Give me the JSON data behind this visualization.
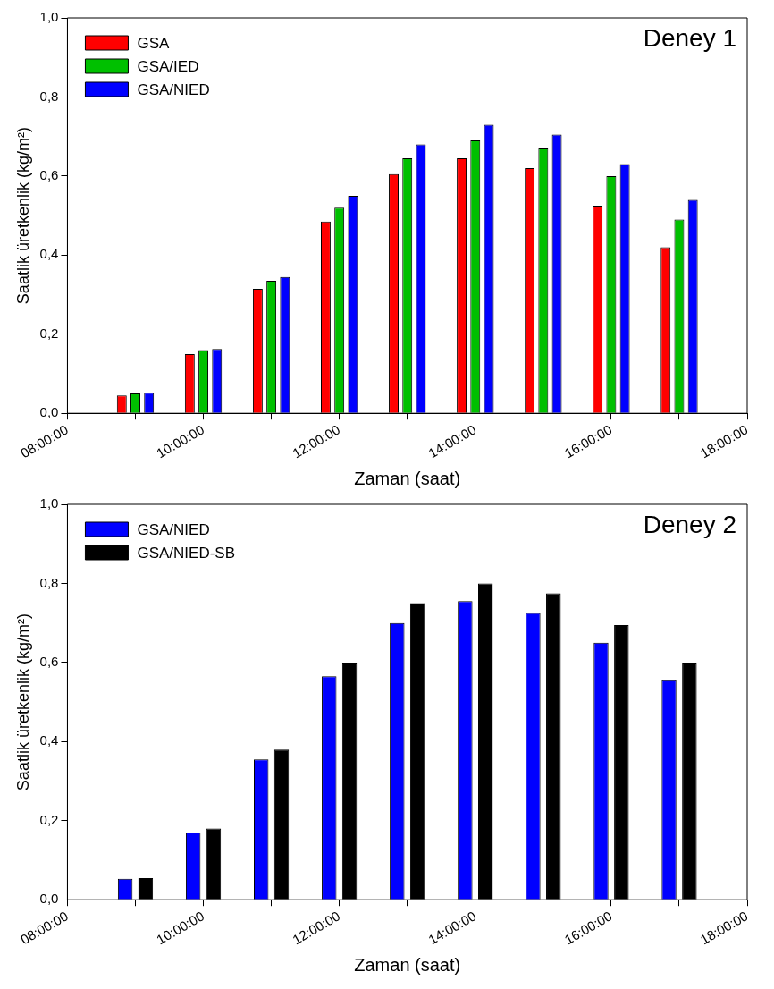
{
  "chart_data": [
    {
      "type": "bar",
      "annotations": [
        "Deney 1"
      ],
      "xlabel": "Zaman (saat)",
      "ylabel": "Saatlik üretkenlik (kg/m²)",
      "x": [
        9,
        10,
        11,
        12,
        13,
        14,
        15,
        16,
        17
      ],
      "series": [
        {
          "name": "GSA",
          "color": "#ff0000",
          "values": [
            0.045,
            0.15,
            0.315,
            0.485,
            0.605,
            0.645,
            0.62,
            0.525,
            0.42
          ]
        },
        {
          "name": "GSA/IED",
          "color": "#00c000",
          "values": [
            0.05,
            0.16,
            0.335,
            0.52,
            0.645,
            0.69,
            0.67,
            0.6,
            0.49
          ]
        },
        {
          "name": "GSA/NIED",
          "color": "#0000ff",
          "values": [
            0.052,
            0.163,
            0.345,
            0.55,
            0.68,
            0.73,
            0.705,
            0.63,
            0.54
          ]
        }
      ],
      "xlim": [
        8,
        18
      ],
      "xticks": [
        {
          "value": 8,
          "label": "08:00:00"
        },
        {
          "value": 9,
          "label": null
        },
        {
          "value": 10,
          "label": "10:00:00"
        },
        {
          "value": 11,
          "label": null
        },
        {
          "value": 12,
          "label": "12:00:00"
        },
        {
          "value": 13,
          "label": null
        },
        {
          "value": 14,
          "label": "14:00:00"
        },
        {
          "value": 15,
          "label": null
        },
        {
          "value": 16,
          "label": "16:00:00"
        },
        {
          "value": 17,
          "label": null
        },
        {
          "value": 18,
          "label": "18:00:00"
        }
      ],
      "ylim": [
        0,
        1
      ],
      "yticks": [
        {
          "value": 0,
          "label": "0,0"
        },
        {
          "value": 0.2,
          "label": "0,2"
        },
        {
          "value": 0.4,
          "label": "0,4"
        },
        {
          "value": 0.6,
          "label": "0,6"
        },
        {
          "value": 0.8,
          "label": "0,8"
        },
        {
          "value": 1,
          "label": "1,0"
        }
      ],
      "legend": "top left"
    },
    {
      "type": "bar",
      "annotations": [
        "Deney 2"
      ],
      "xlabel": "Zaman (saat)",
      "ylabel": "Saatlik üretkenlik (kg/m²)",
      "x": [
        9,
        10,
        11,
        12,
        13,
        14,
        15,
        16,
        17
      ],
      "series": [
        {
          "name": "GSA/NIED",
          "color": "#0000ff",
          "values": [
            0.053,
            0.17,
            0.355,
            0.565,
            0.7,
            0.755,
            0.725,
            0.65,
            0.555
          ]
        },
        {
          "name": "GSA/NIED-SB",
          "color": "#000000",
          "values": [
            0.055,
            0.18,
            0.38,
            0.6,
            0.75,
            0.8,
            0.775,
            0.695,
            0.6
          ]
        }
      ],
      "xlim": [
        8,
        18
      ],
      "xticks": [
        {
          "value": 8,
          "label": "08:00:00"
        },
        {
          "value": 9,
          "label": null
        },
        {
          "value": 10,
          "label": "10:00:00"
        },
        {
          "value": 11,
          "label": null
        },
        {
          "value": 12,
          "label": "12:00:00"
        },
        {
          "value": 13,
          "label": null
        },
        {
          "value": 14,
          "label": "14:00:00"
        },
        {
          "value": 15,
          "label": null
        },
        {
          "value": 16,
          "label": "16:00:00"
        },
        {
          "value": 17,
          "label": null
        },
        {
          "value": 18,
          "label": "18:00:00"
        }
      ],
      "ylim": [
        0,
        1
      ],
      "yticks": [
        {
          "value": 0,
          "label": "0,0"
        },
        {
          "value": 0.2,
          "label": "0,2"
        },
        {
          "value": 0.4,
          "label": "0,4"
        },
        {
          "value": 0.6,
          "label": "0,6"
        },
        {
          "value": 0.8,
          "label": "0,8"
        },
        {
          "value": 1,
          "label": "1,0"
        }
      ],
      "legend": "top left"
    }
  ]
}
